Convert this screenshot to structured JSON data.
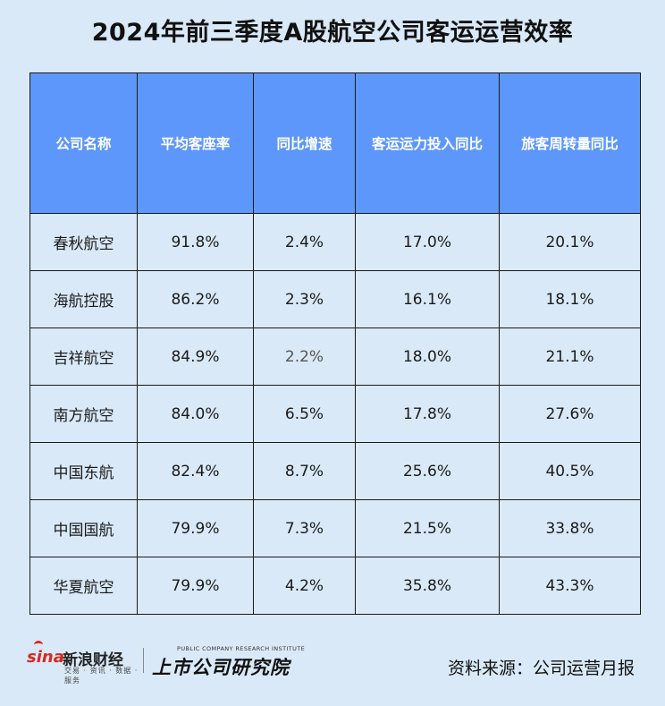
{
  "title": "2024年前三季度A股航空公司客运运营效率",
  "chart_data": {
    "type": "table",
    "columns": [
      "公司名称",
      "平均客座率",
      "同比增速",
      "客运运力投入同比",
      "旅客周转量同比"
    ],
    "rows": [
      [
        "春秋航空",
        "91.8%",
        "2.4%",
        "17.0%",
        "20.1%"
      ],
      [
        "海航控股",
        "86.2%",
        "2.3%",
        "16.1%",
        "18.1%"
      ],
      [
        "吉祥航空",
        "84.9%",
        "2.2%",
        "18.0%",
        "21.1%"
      ],
      [
        "南方航空",
        "84.0%",
        "6.5%",
        "17.8%",
        "27.6%"
      ],
      [
        "中国东航",
        "82.4%",
        "8.7%",
        "25.6%",
        "40.5%"
      ],
      [
        "中国国航",
        "79.9%",
        "7.3%",
        "21.5%",
        "33.8%"
      ],
      [
        "华夏航空",
        "79.9%",
        "4.2%",
        "35.8%",
        "43.3%"
      ]
    ]
  },
  "footer": {
    "sina_word": "sina",
    "sina_cn": "新浪财经",
    "sina_sub": "交易 · 资讯 · 数据 · 服务",
    "institute_en": "PUBLIC COMPANY RESEARCH INSTITUTE",
    "institute_cn": "上市公司研究院",
    "source": "资料来源：公司运营月报"
  },
  "colors": {
    "header_bg": "#5e97fb",
    "page_bg": "#d9e9f7",
    "brand_red": "#d9281f"
  }
}
